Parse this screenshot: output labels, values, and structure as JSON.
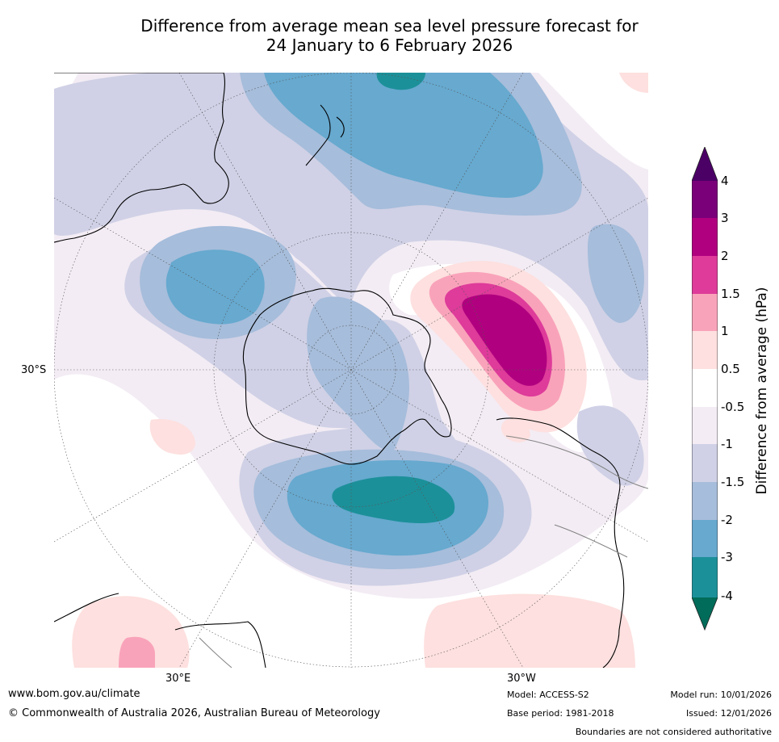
{
  "title": {
    "line1": "Difference from average mean sea level pressure forecast for",
    "line2": "24 January to 6 February 2026"
  },
  "map": {
    "lat_label": "30°S",
    "lon_labels": [
      "30°E",
      "30°W"
    ]
  },
  "legend": {
    "title": "Difference from average (hPa)",
    "ticks": [
      "4",
      "3",
      "2",
      "1.5",
      "1",
      "0.5",
      "-0.5",
      "-1",
      "-1.5",
      "-2",
      "-3",
      "-4"
    ],
    "bins": [
      {
        "range": "> 4",
        "color": "#4b0066"
      },
      {
        "range": "3 to 4",
        "color": "#7a0079"
      },
      {
        "range": "2 to 3",
        "color": "#b0007f"
      },
      {
        "range": "1.5 to 2",
        "color": "#de3b9a"
      },
      {
        "range": "1 to 1.5",
        "color": "#f9a3ba"
      },
      {
        "range": "0.5 to 1",
        "color": "#fde0df"
      },
      {
        "range": "-0.5 to 0.5",
        "color": "#ffffff"
      },
      {
        "range": "-1 to -0.5",
        "color": "#f3ecf4"
      },
      {
        "range": "-1.5 to -1",
        "color": "#d0d1e6"
      },
      {
        "range": "-2 to -1.5",
        "color": "#a6bddb"
      },
      {
        "range": "-3 to -2",
        "color": "#67a9cf"
      },
      {
        "range": "-4 to -3",
        "color": "#1c9099"
      },
      {
        "range": "< -4",
        "color": "#016c59"
      }
    ]
  },
  "footer": {
    "url": "www.bom.gov.au/climate",
    "copyright": "© Commonwealth of Australia 2026, Australian Bureau of Meteorology",
    "model": "Model: ACCESS-S2",
    "base_period": "Base period: 1981-2018",
    "model_run": "Model run: 10/01/2026",
    "issued": "Issued: 12/01/2026",
    "disclaimer": "Boundaries are not considered authoritative"
  }
}
